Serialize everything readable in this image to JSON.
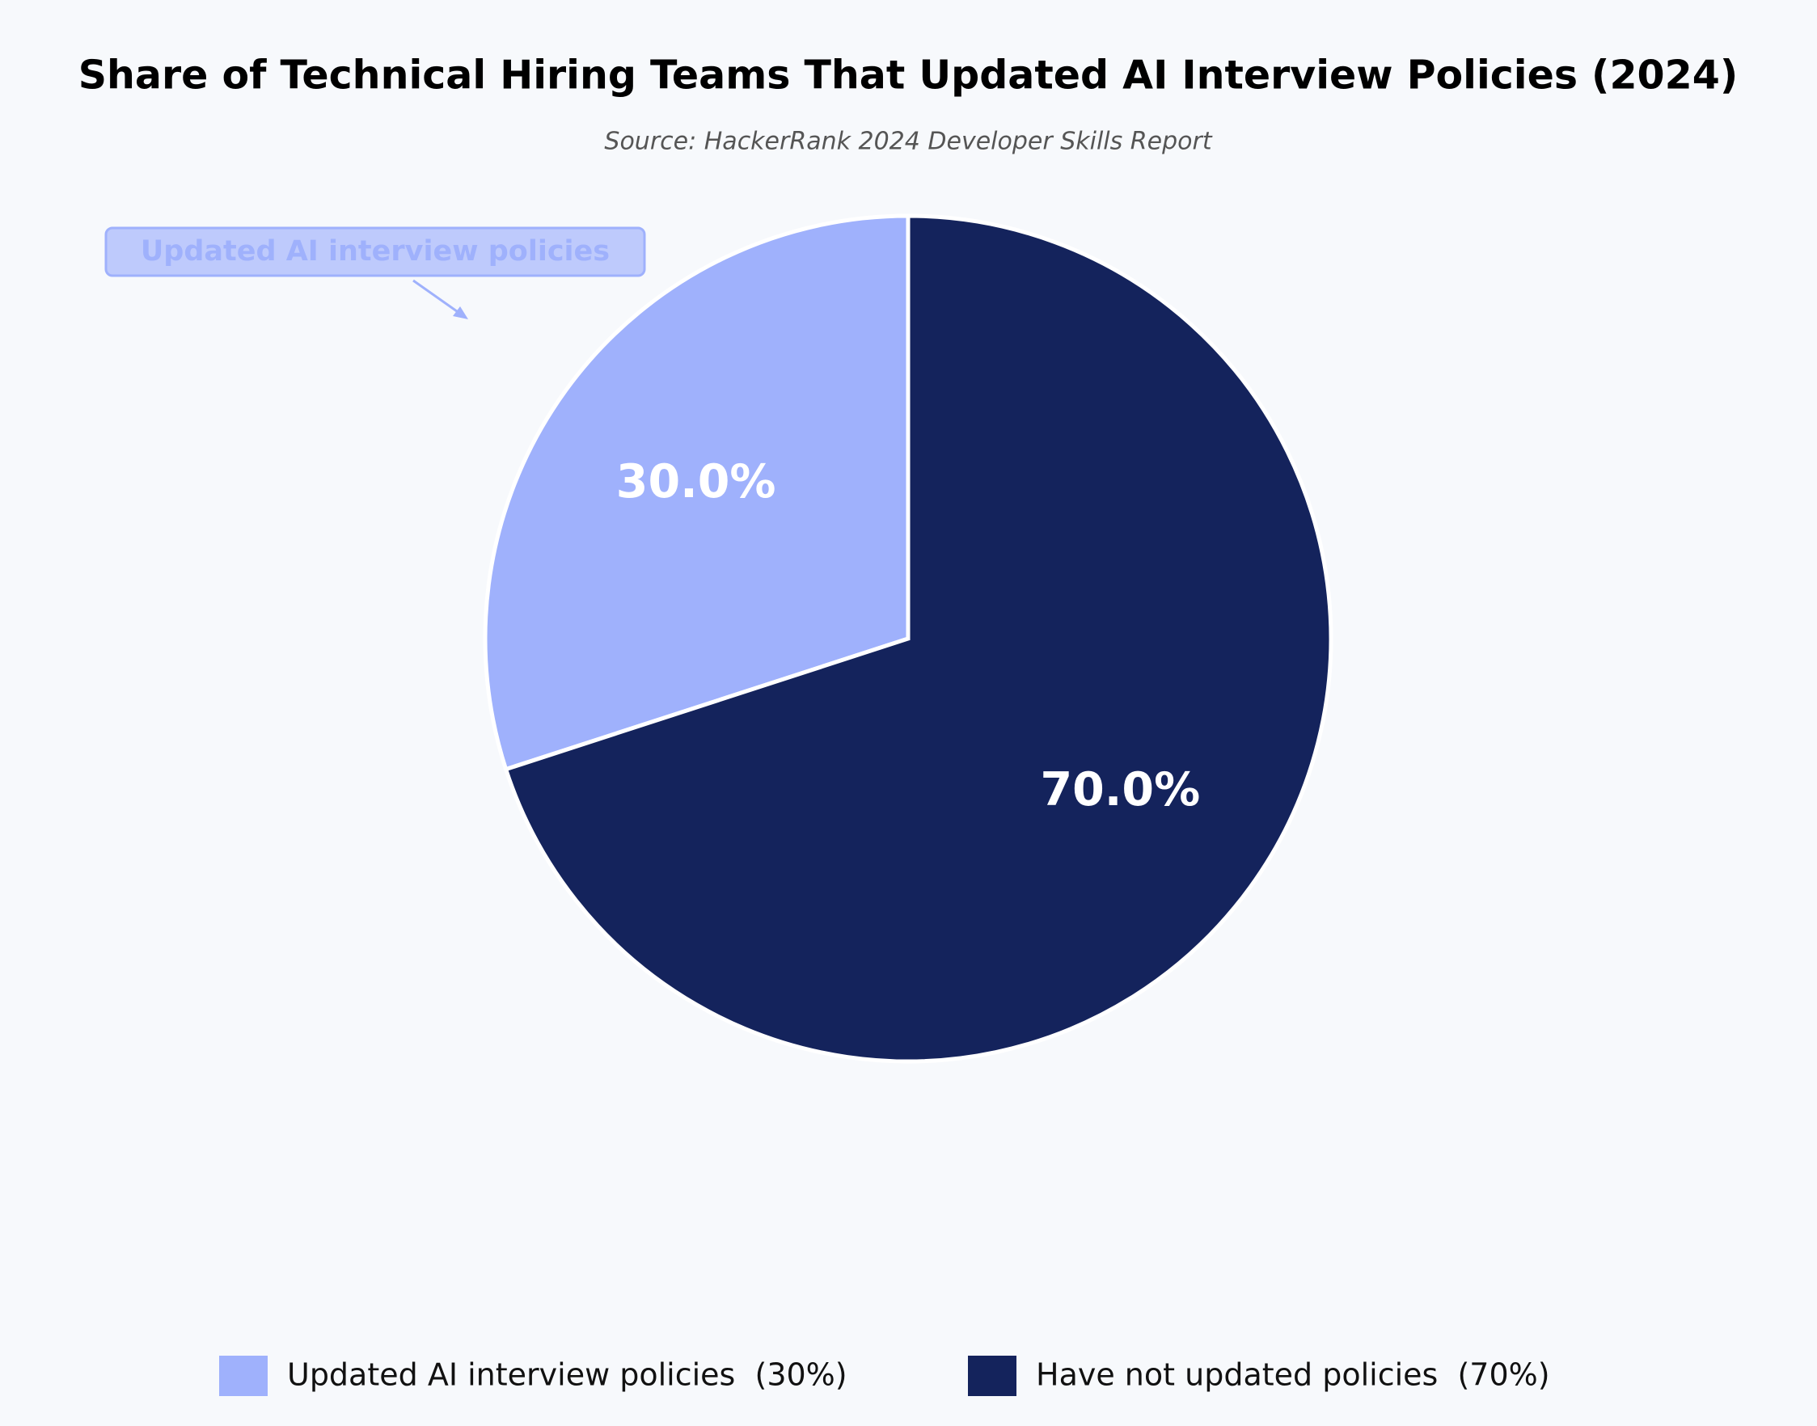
{
  "chart_data": {
    "type": "pie",
    "title": "Share of Technical Hiring Teams That Updated AI Interview Policies (2024)",
    "subtitle": "Source: HackerRank 2024 Developer Skills Report",
    "categories": [
      "Updated AI interview policies",
      "Have not updated policies"
    ],
    "values": [
      30,
      70
    ],
    "value_labels": [
      "30.0%",
      "70.0%"
    ],
    "colors": [
      "#9fb1fc",
      "#14235c"
    ],
    "legend_labels": [
      "Updated AI interview policies  (30%)",
      "Have not updated policies  (70%)"
    ],
    "legend": "bottom",
    "annotation": "Updated AI interview policies",
    "start_angle": 90
  }
}
